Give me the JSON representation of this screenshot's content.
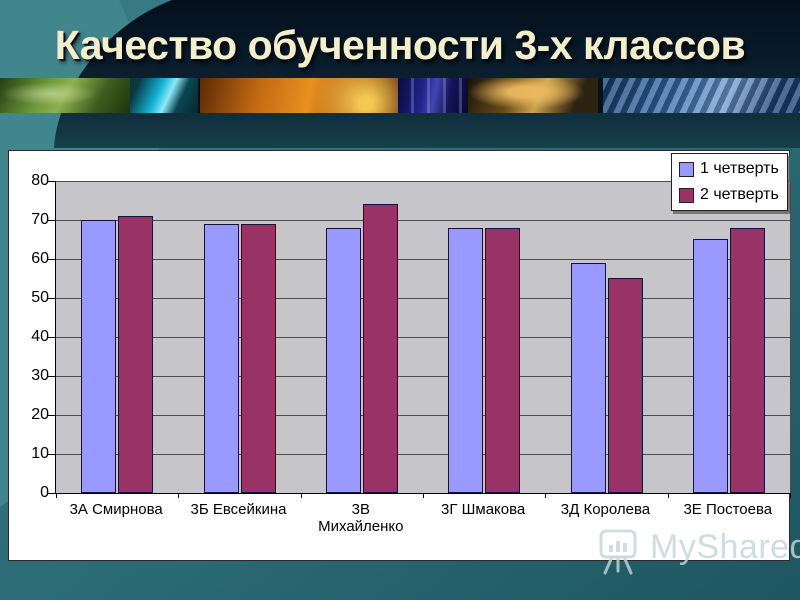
{
  "slide": {
    "title": "Качество обученности 3-х классов",
    "watermark": "MyShared"
  },
  "photo_strip": {
    "photos": [
      "mouse-cable",
      "monitor",
      "hard-drive",
      "test-tubes",
      "writing-hand",
      "keyboard"
    ]
  },
  "colors": {
    "background_teal": "#2A6B75",
    "header_navy": "#0A1C2C",
    "title_text": "#F3EFCD",
    "chart_background": "#FFFFFF",
    "plot_background": "#C6C5C9",
    "series1_blue": "#9999FF",
    "series2_maroon": "#993366"
  },
  "chart_data": {
    "type": "bar",
    "title": "Качество обученности 3-х классов",
    "xlabel": "",
    "ylabel": "",
    "categories": [
      "3А Смирнова",
      "3Б Евсейкина",
      "3В Михайленко",
      "3Г Шмакова",
      "3Д Королева",
      "3Е Постоева"
    ],
    "categories_lines": [
      [
        "3А Смирнова"
      ],
      [
        "3Б Евсейкина"
      ],
      [
        "3В",
        "Михайленко"
      ],
      [
        "3Г Шмакова"
      ],
      [
        "3Д Королева"
      ],
      [
        "3Е Постоева"
      ]
    ],
    "series": [
      {
        "name": "1 четверть",
        "color": "#9999FF",
        "values": [
          70,
          69,
          68,
          68,
          59,
          65
        ]
      },
      {
        "name": "2 четверть",
        "color": "#993366",
        "values": [
          71,
          69,
          74,
          68,
          55,
          68
        ]
      }
    ],
    "ylim": [
      0,
      80
    ],
    "yticks": [
      0,
      10,
      20,
      30,
      40,
      50,
      60,
      70,
      80
    ],
    "grid": true,
    "plot_bg": "#C6C5C9",
    "legend_position": "top-right"
  }
}
